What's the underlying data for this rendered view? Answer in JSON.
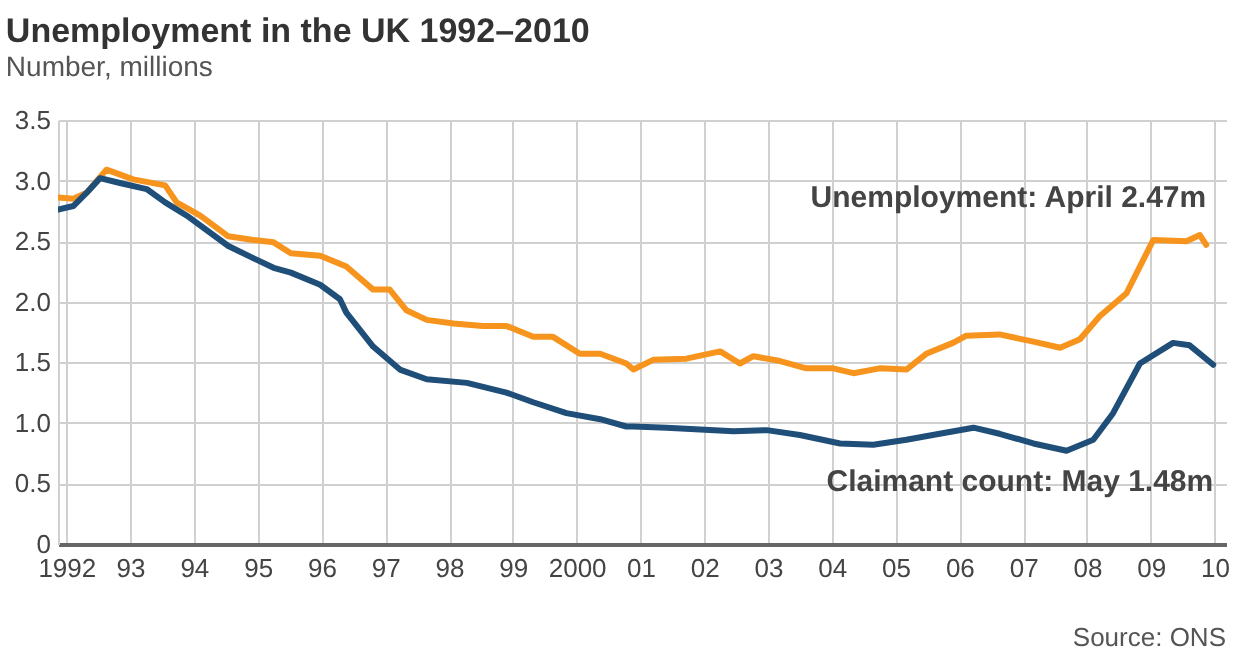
{
  "chart_data": {
    "type": "line",
    "title": "Unemployment in the UK 1992–2010",
    "subtitle": "Number, millions",
    "series": [
      {
        "name": "Unemployment: April 2.47m",
        "color": "#f7941d",
        "x": [
          1991.87,
          1992.11,
          1992.32,
          1992.63,
          1993.05,
          1993.55,
          1993.73,
          1994.1,
          1994.54,
          1994.93,
          1995.25,
          1995.52,
          1995.98,
          1996.39,
          1996.81,
          1997.07,
          1997.33,
          1997.65,
          1998.07,
          1998.53,
          1998.9,
          1999.32,
          1999.63,
          2000.05,
          2000.37,
          2000.78,
          2000.89,
          2001.2,
          2001.72,
          2002.25,
          2002.56,
          2002.77,
          2003.19,
          2003.6,
          2004.02,
          2004.34,
          2004.75,
          2005.17,
          2005.48,
          2005.9,
          2006.11,
          2006.63,
          2007.16,
          2007.58,
          2007.89,
          2008.2,
          2008.62,
          2009.04,
          2009.56,
          2009.77,
          2009.87
        ],
        "values": [
          2.86,
          2.85,
          2.9,
          3.09,
          3.01,
          2.96,
          2.82,
          2.71,
          2.54,
          2.51,
          2.49,
          2.4,
          2.38,
          2.29,
          2.1,
          2.1,
          1.93,
          1.85,
          1.82,
          1.8,
          1.8,
          1.71,
          1.71,
          1.57,
          1.57,
          1.49,
          1.44,
          1.52,
          1.53,
          1.59,
          1.49,
          1.55,
          1.51,
          1.45,
          1.45,
          1.41,
          1.45,
          1.44,
          1.57,
          1.66,
          1.72,
          1.73,
          1.67,
          1.62,
          1.69,
          1.88,
          2.07,
          2.51,
          2.5,
          2.55,
          2.47
        ]
      },
      {
        "name": "Claimant count: May 1.48m",
        "color": "#1f4e79",
        "x": [
          1991.87,
          1992.11,
          1992.32,
          1992.53,
          1992.84,
          1993.26,
          1993.55,
          1993.89,
          1994.54,
          1994.93,
          1995.25,
          1995.52,
          1995.98,
          1996.29,
          1996.39,
          1996.81,
          1997.23,
          1997.65,
          1998.28,
          1998.9,
          1999.32,
          1999.84,
          2000.37,
          2000.78,
          2000.89,
          2001.41,
          2002.46,
          2002.98,
          2003.5,
          2004.13,
          2004.65,
          2005.17,
          2005.69,
          2006.22,
          2006.63,
          2007.16,
          2007.68,
          2008.1,
          2008.41,
          2008.83,
          2009.35,
          2009.61,
          2009.98
        ],
        "values": [
          2.76,
          2.79,
          2.9,
          3.02,
          2.98,
          2.93,
          2.82,
          2.71,
          2.46,
          2.36,
          2.28,
          2.24,
          2.14,
          2.02,
          1.91,
          1.63,
          1.44,
          1.36,
          1.33,
          1.25,
          1.17,
          1.08,
          1.03,
          0.97,
          0.97,
          0.96,
          0.93,
          0.94,
          0.9,
          0.83,
          0.82,
          0.86,
          0.91,
          0.96,
          0.91,
          0.83,
          0.77,
          0.86,
          1.08,
          1.49,
          1.66,
          1.64,
          1.48
        ]
      }
    ],
    "xlim": [
      1991.87,
      2010.18
    ],
    "xticks": [
      {
        "value": 1992,
        "label": "1992"
      },
      {
        "value": 1993,
        "label": "93"
      },
      {
        "value": 1994,
        "label": "94"
      },
      {
        "value": 1995,
        "label": "95"
      },
      {
        "value": 1996,
        "label": "96"
      },
      {
        "value": 1997,
        "label": "97"
      },
      {
        "value": 1998,
        "label": "98"
      },
      {
        "value": 1999,
        "label": "99"
      },
      {
        "value": 2000,
        "label": "2000"
      },
      {
        "value": 2001,
        "label": "01"
      },
      {
        "value": 2002,
        "label": "02"
      },
      {
        "value": 2003,
        "label": "03"
      },
      {
        "value": 2004,
        "label": "04"
      },
      {
        "value": 2005,
        "label": "05"
      },
      {
        "value": 2006,
        "label": "06"
      },
      {
        "value": 2007,
        "label": "07"
      },
      {
        "value": 2008,
        "label": "08"
      },
      {
        "value": 2009,
        "label": "09"
      },
      {
        "value": 2010,
        "label": "10"
      }
    ],
    "ylim": [
      0,
      3.5
    ],
    "yticks": [
      0,
      0.5,
      {
        "value": 1,
        "label": "1.0"
      },
      1.5,
      {
        "value": 2,
        "label": "2.0"
      },
      2.5,
      {
        "value": 3,
        "label": "3.0"
      },
      3.5
    ],
    "grid": true,
    "marker": "none",
    "line_style": "solid",
    "annotations": [
      "Source: ONS"
    ]
  }
}
